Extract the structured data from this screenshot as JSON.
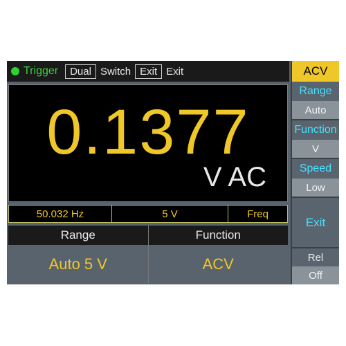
{
  "screen": {
    "background_color": "#59636d",
    "accent_yellow": "#f0c728",
    "cyan": "#46e0ff",
    "text_light": "#e8e8e8"
  },
  "topbar": {
    "trigger_label": "Trigger",
    "led_color": "#2fd12f",
    "dual_box": "Dual",
    "switch_label": "Switch",
    "exit_box": "Exit",
    "exit_label": "Exit"
  },
  "main": {
    "reading": "0.1377",
    "reading_fontsize": 92,
    "unit": "V AC",
    "unit_fontsize": 40,
    "bg": "#000000"
  },
  "secondary": {
    "freq_value": "50.032 Hz",
    "range_value": "5 V",
    "mode_label": "Freq"
  },
  "bottom": {
    "headers": {
      "range": "Range",
      "function": "Function"
    },
    "values": {
      "range": "Auto 5 V",
      "function": "ACV"
    }
  },
  "sidebar": {
    "active": "ACV",
    "range": {
      "label": "Range",
      "value": "Auto"
    },
    "function": {
      "label": "Function",
      "value": "V"
    },
    "speed": {
      "label": "Speed",
      "value": "Low"
    },
    "exit": "Exit",
    "rel": {
      "label": "Rel",
      "value": "Off"
    }
  }
}
